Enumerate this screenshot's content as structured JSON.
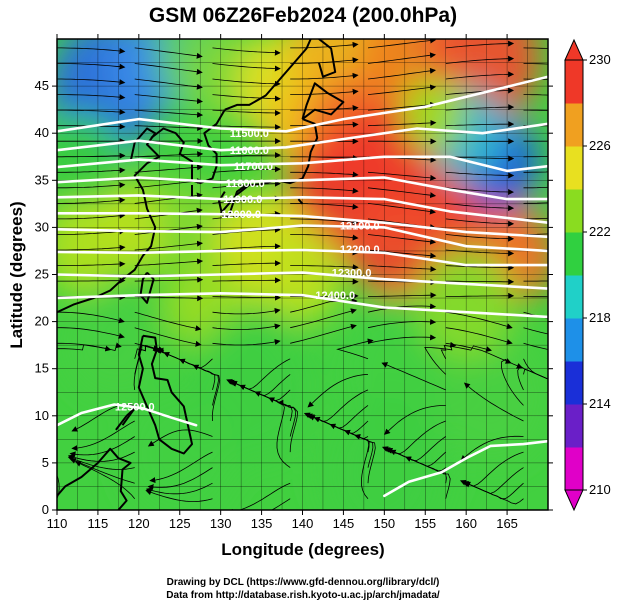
{
  "title": "GSM 06Z26Feb2024 (200.0hPa)",
  "x_axis": {
    "label": "Longitude (degrees)",
    "range": [
      110,
      170
    ],
    "ticks": [
      "110",
      "115",
      "120",
      "125",
      "130",
      "135",
      "140",
      "145",
      "150",
      "155",
      "160",
      "165"
    ]
  },
  "y_axis": {
    "label": "Latitude (degrees)",
    "range": [
      0,
      50
    ],
    "ticks": [
      "0",
      "5",
      "10",
      "15",
      "20",
      "25",
      "30",
      "35",
      "40",
      "45"
    ]
  },
  "colorbar": {
    "range": [
      210,
      230
    ],
    "ticks": [
      "210",
      "214",
      "218",
      "222",
      "226",
      "230"
    ],
    "colors": [
      "#e000c8",
      "#6a1fc8",
      "#1a2fd8",
      "#1e90e8",
      "#20d0c8",
      "#30d040",
      "#8adc20",
      "#e8e020",
      "#f0a020",
      "#ef3828"
    ]
  },
  "contours": {
    "color": "#ffffff",
    "labels": [
      {
        "text": "11500.0",
        "lon": 133.5,
        "lat": 40.0
      },
      {
        "text": "11600.0",
        "lon": 133.5,
        "lat": 38.2
      },
      {
        "text": "11700.0",
        "lon": 134.0,
        "lat": 36.5
      },
      {
        "text": "11800.0",
        "lon": 133.0,
        "lat": 34.7
      },
      {
        "text": "11900.0",
        "lon": 132.7,
        "lat": 33.0
      },
      {
        "text": "12000.0",
        "lon": 132.5,
        "lat": 31.4
      },
      {
        "text": "12100.0",
        "lon": 147.0,
        "lat": 30.2
      },
      {
        "text": "12200.0",
        "lon": 147.0,
        "lat": 27.7
      },
      {
        "text": "12300.0",
        "lon": 146.0,
        "lat": 25.2
      },
      {
        "text": "12400.0",
        "lon": 144.0,
        "lat": 22.8
      },
      {
        "text": "12500.0",
        "lon": 119.5,
        "lat": 11.0
      }
    ]
  },
  "credits": {
    "line1": "Drawing by DCL (https://www.gfd-dennou.org/library/dcl/)",
    "line2": "Data from http://database.rish.kyoto-u.ac.jp/arch/jmadata/"
  }
}
